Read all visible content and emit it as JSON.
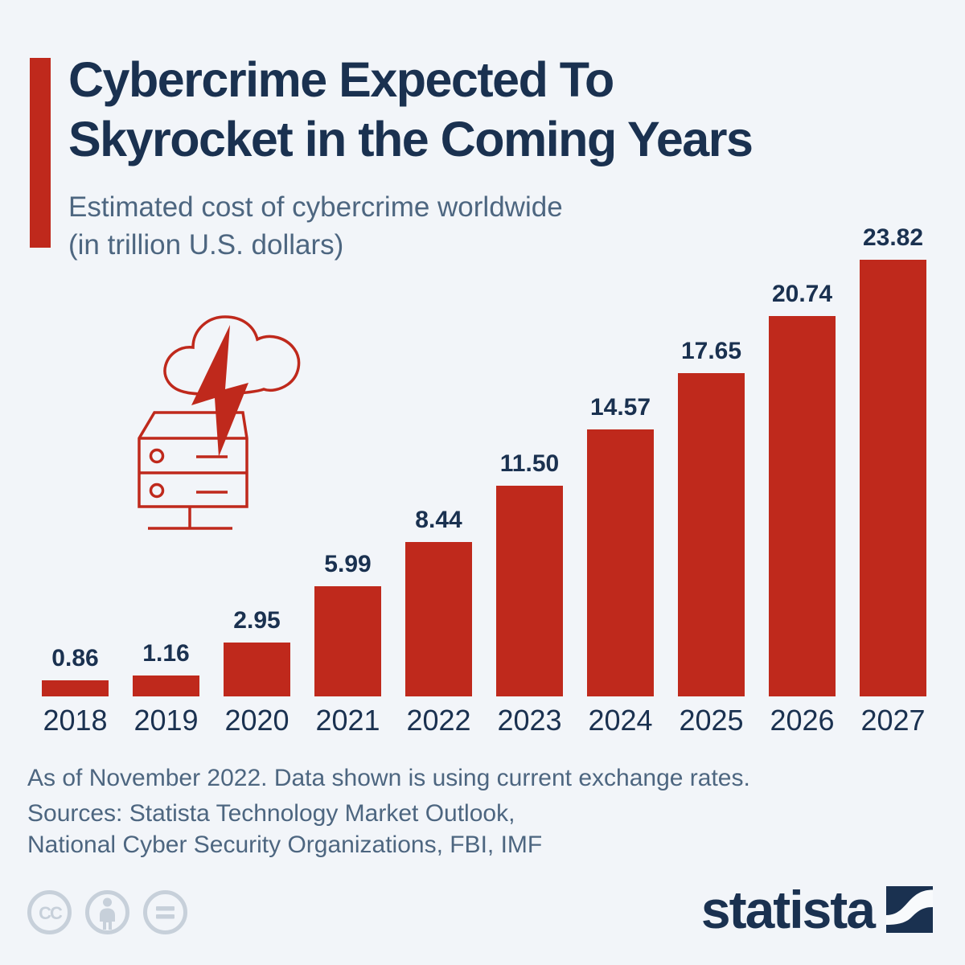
{
  "colors": {
    "background": "#f2f5f9",
    "accent_red": "#bf291c",
    "title_navy": "#1a3150",
    "subtitle_slate": "#4d6680",
    "license_icon_gray": "#c7d0da"
  },
  "header": {
    "title_line1": "Cybercrime Expected To",
    "title_line2": "Skyrocket in the Coming Years",
    "subtitle_line1": "Estimated cost of cybercrime worldwide",
    "subtitle_line2": "(in trillion U.S. dollars)"
  },
  "chart_data": {
    "type": "bar",
    "title": "Cybercrime Expected To Skyrocket in the Coming Years",
    "subtitle": "Estimated cost of cybercrime worldwide (in trillion U.S. dollars)",
    "categories": [
      "2018",
      "2019",
      "2020",
      "2021",
      "2022",
      "2023",
      "2024",
      "2025",
      "2026",
      "2027"
    ],
    "values": [
      0.86,
      1.16,
      2.95,
      5.99,
      8.44,
      11.5,
      14.57,
      17.65,
      20.74,
      23.82
    ],
    "value_labels": [
      "0.86",
      "1.16",
      "2.95",
      "5.99",
      "8.44",
      "11.50",
      "14.57",
      "17.65",
      "20.74",
      "23.82"
    ],
    "xlabel": "",
    "ylabel": "trillion U.S. dollars",
    "ylim": [
      0,
      25
    ],
    "grid": false,
    "legend": false,
    "bar_color": "#bf291c",
    "value_label_position": "above-bar",
    "decoration_icon": "cloud-lightning-server-icon"
  },
  "footer": {
    "note": "As of November 2022. Data shown is using current exchange rates.",
    "sources_line1": "Sources: Statista Technology Market Outlook,",
    "sources_line2": "National Cyber Security Organizations, FBI, IMF"
  },
  "branding": {
    "logo_text": "statista",
    "license_icons": [
      "creative-commons-icon",
      "attribution-person-icon",
      "no-derivatives-equals-icon"
    ]
  }
}
